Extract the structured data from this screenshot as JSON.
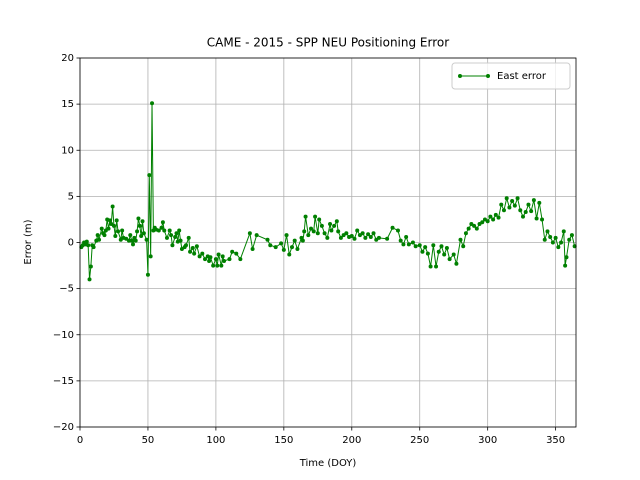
{
  "chart_data": {
    "type": "line",
    "title": "CAME - 2015 - SPP NEU Positioning Error",
    "x_label": "Time (DOY)",
    "y_label": "Error (m)",
    "xlim": [
      0,
      365
    ],
    "ylim": [
      -20,
      20
    ],
    "xticks": [
      0,
      50,
      100,
      150,
      200,
      250,
      300,
      350
    ],
    "yticks": [
      {
        "value": -20,
        "label": "−20"
      },
      {
        "value": -15,
        "label": "−15"
      },
      {
        "value": -10,
        "label": "−10"
      },
      {
        "value": -5,
        "label": "−5"
      },
      0,
      5,
      10,
      15,
      20
    ],
    "grid": true,
    "legend": "upper right",
    "x": [
      1,
      2,
      3,
      4,
      5,
      6,
      7,
      8,
      9,
      10,
      12,
      13,
      14,
      16,
      17,
      18,
      19,
      20,
      21,
      22,
      23,
      24,
      25,
      26,
      27,
      28,
      30,
      31,
      32,
      34,
      36,
      37,
      38,
      39,
      40,
      41,
      42,
      43,
      44,
      45,
      46,
      47,
      49,
      50,
      51,
      52,
      53,
      54,
      55,
      56,
      58,
      60,
      61,
      62,
      64,
      66,
      67,
      68,
      70,
      71,
      72,
      73,
      74,
      75,
      77,
      78,
      80,
      81,
      83,
      84,
      86,
      88,
      90,
      92,
      94,
      95,
      96,
      98,
      100,
      101,
      102,
      104,
      105,
      106,
      110,
      112,
      115,
      118,
      125,
      127,
      130,
      138,
      140,
      144,
      148,
      150,
      152,
      154,
      156,
      158,
      160,
      163,
      164,
      165,
      166,
      168,
      170,
      172,
      173,
      175,
      176,
      178,
      180,
      182,
      184,
      185,
      187,
      189,
      190,
      192,
      194,
      196,
      198,
      200,
      202,
      204,
      206,
      208,
      210,
      212,
      214,
      216,
      218,
      220,
      226,
      230,
      234,
      236,
      238,
      240,
      242,
      245,
      247,
      250,
      252,
      254,
      256,
      258,
      260,
      262,
      264,
      266,
      268,
      270,
      272,
      275,
      277,
      280,
      282,
      284,
      286,
      288,
      290,
      292,
      294,
      296,
      298,
      300,
      302,
      304,
      306,
      308,
      310,
      312,
      314,
      316,
      318,
      320,
      322,
      324,
      326,
      328,
      330,
      332,
      334,
      336,
      338,
      340,
      342,
      344,
      346,
      348,
      350,
      352,
      354,
      356,
      357,
      358,
      360,
      362,
      364
    ],
    "series": [
      {
        "name": "East error",
        "color": "#008000",
        "values": [
          -0.5,
          -0.3,
          0,
          -0.2,
          0.1,
          -0.3,
          -4,
          -2.6,
          -0.3,
          -0.5,
          0.2,
          0.8,
          0.3,
          1.5,
          1.0,
          0.8,
          1.3,
          2.5,
          1.5,
          2.4,
          2.0,
          3.9,
          1.8,
          0.7,
          2.4,
          1.2,
          0.3,
          1.3,
          0.5,
          0.4,
          0.2,
          0.8,
          0.2,
          -0.2,
          0.5,
          0.2,
          1.2,
          2.6,
          1.8,
          0.7,
          2.3,
          1.0,
          0.3,
          -3.5,
          7.3,
          -1.5,
          15.1,
          1.3,
          1.6,
          1.4,
          1.3,
          1.6,
          2.2,
          1.3,
          0.5,
          1.3,
          0.8,
          -0.3,
          0.6,
          1.0,
          0.1,
          1.3,
          0.2,
          -0.7,
          -0.5,
          -0.3,
          0.5,
          -1.0,
          -0.6,
          -1.2,
          -0.4,
          -1.5,
          -1.2,
          -1.8,
          -1.5,
          -2.0,
          -1.6,
          -2.5,
          -1.8,
          -2.5,
          -1.3,
          -2.5,
          -1.5,
          -2.0,
          -1.8,
          -1.0,
          -1.2,
          -1.8,
          1.0,
          -0.7,
          0.8,
          0.3,
          -0.3,
          -0.5,
          -0.1,
          -0.8,
          0.8,
          -1.3,
          -0.5,
          0.2,
          -0.7,
          0.5,
          0.2,
          1.2,
          2.8,
          0.8,
          1.5,
          1.2,
          2.8,
          1.0,
          2.5,
          1.8,
          1.0,
          0.5,
          2.0,
          1.3,
          1.8,
          2.3,
          1.2,
          0.5,
          0.8,
          1.0,
          0.6,
          0.7,
          0.4,
          1.3,
          0.8,
          1.0,
          0.5,
          0.9,
          0.6,
          1.0,
          0.3,
          0.5,
          0.4,
          1.6,
          1.3,
          0.2,
          -0.2,
          0.6,
          -0.2,
          0.0,
          -0.4,
          -0.3,
          -1.0,
          -0.5,
          -1.2,
          -2.6,
          -0.3,
          -2.6,
          -1.0,
          -0.4,
          -1.3,
          -0.6,
          -1.8,
          -1.3,
          -2.3,
          0.3,
          -0.4,
          1.0,
          1.5,
          2.0,
          1.8,
          1.5,
          2.0,
          2.2,
          2.5,
          2.3,
          2.8,
          2.5,
          3.0,
          2.7,
          4.1,
          3.5,
          4.8,
          3.8,
          4.5,
          4.0,
          4.8,
          3.5,
          2.8,
          3.3,
          4.1,
          3.4,
          4.6,
          2.6,
          4.3,
          2.5,
          0.3,
          1.2,
          0.6,
          0.0,
          0.5,
          -0.5,
          0.0,
          1.2,
          -2.5,
          -1.6,
          0.3,
          0.8,
          -0.4
        ]
      }
    ]
  }
}
